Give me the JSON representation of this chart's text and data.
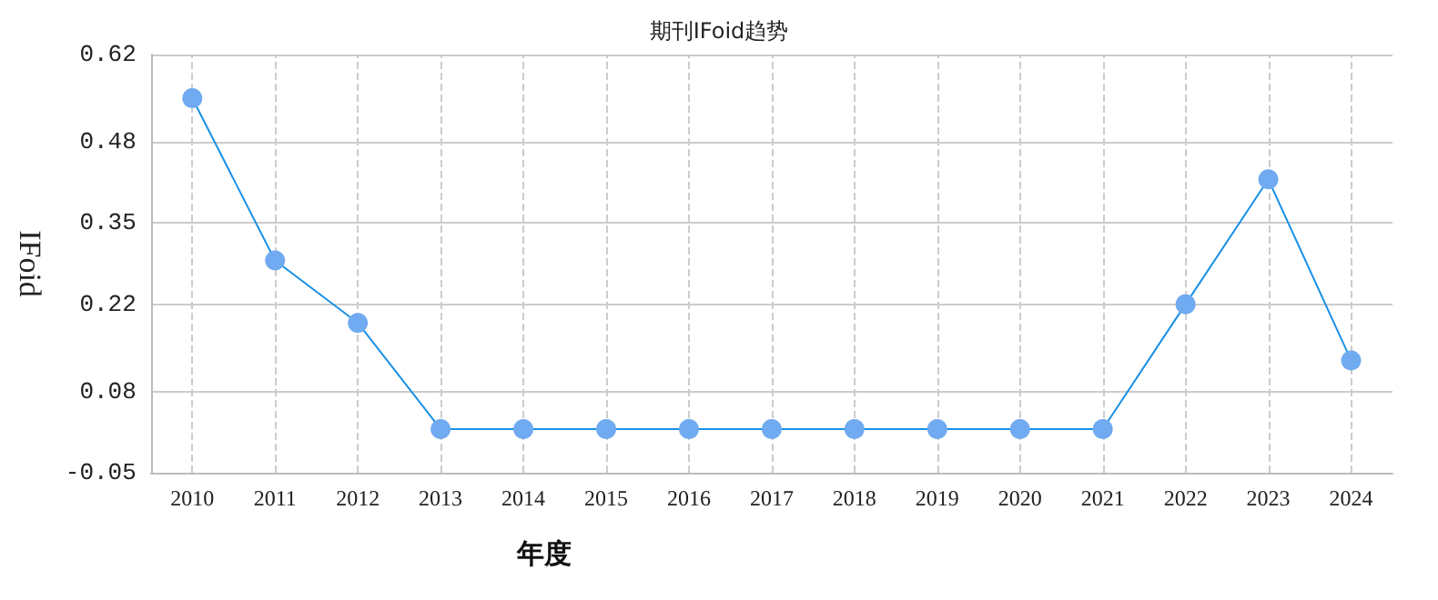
{
  "chart_data": {
    "type": "line",
    "title": "期刊IFoid趋势",
    "xlabel": "年度",
    "ylabel": "IFoid",
    "categories": [
      "2010",
      "2011",
      "2012",
      "2013",
      "2014",
      "2015",
      "2016",
      "2017",
      "2018",
      "2019",
      "2020",
      "2021",
      "2022",
      "2023",
      "2024"
    ],
    "series": [
      {
        "color": "#70aaf0",
        "values": [
          0.55,
          0.29,
          0.19,
          0.02,
          0.02,
          0.02,
          0.02,
          0.02,
          0.02,
          0.02,
          0.02,
          0.02,
          0.22,
          0.42,
          0.13
        ]
      }
    ],
    "ylim": [
      -0.05,
      0.62
    ],
    "yticks": [
      -0.05,
      0.08,
      0.22,
      0.35,
      0.48,
      0.62
    ],
    "grid": true,
    "marker": "circle",
    "line_style": "solid"
  }
}
